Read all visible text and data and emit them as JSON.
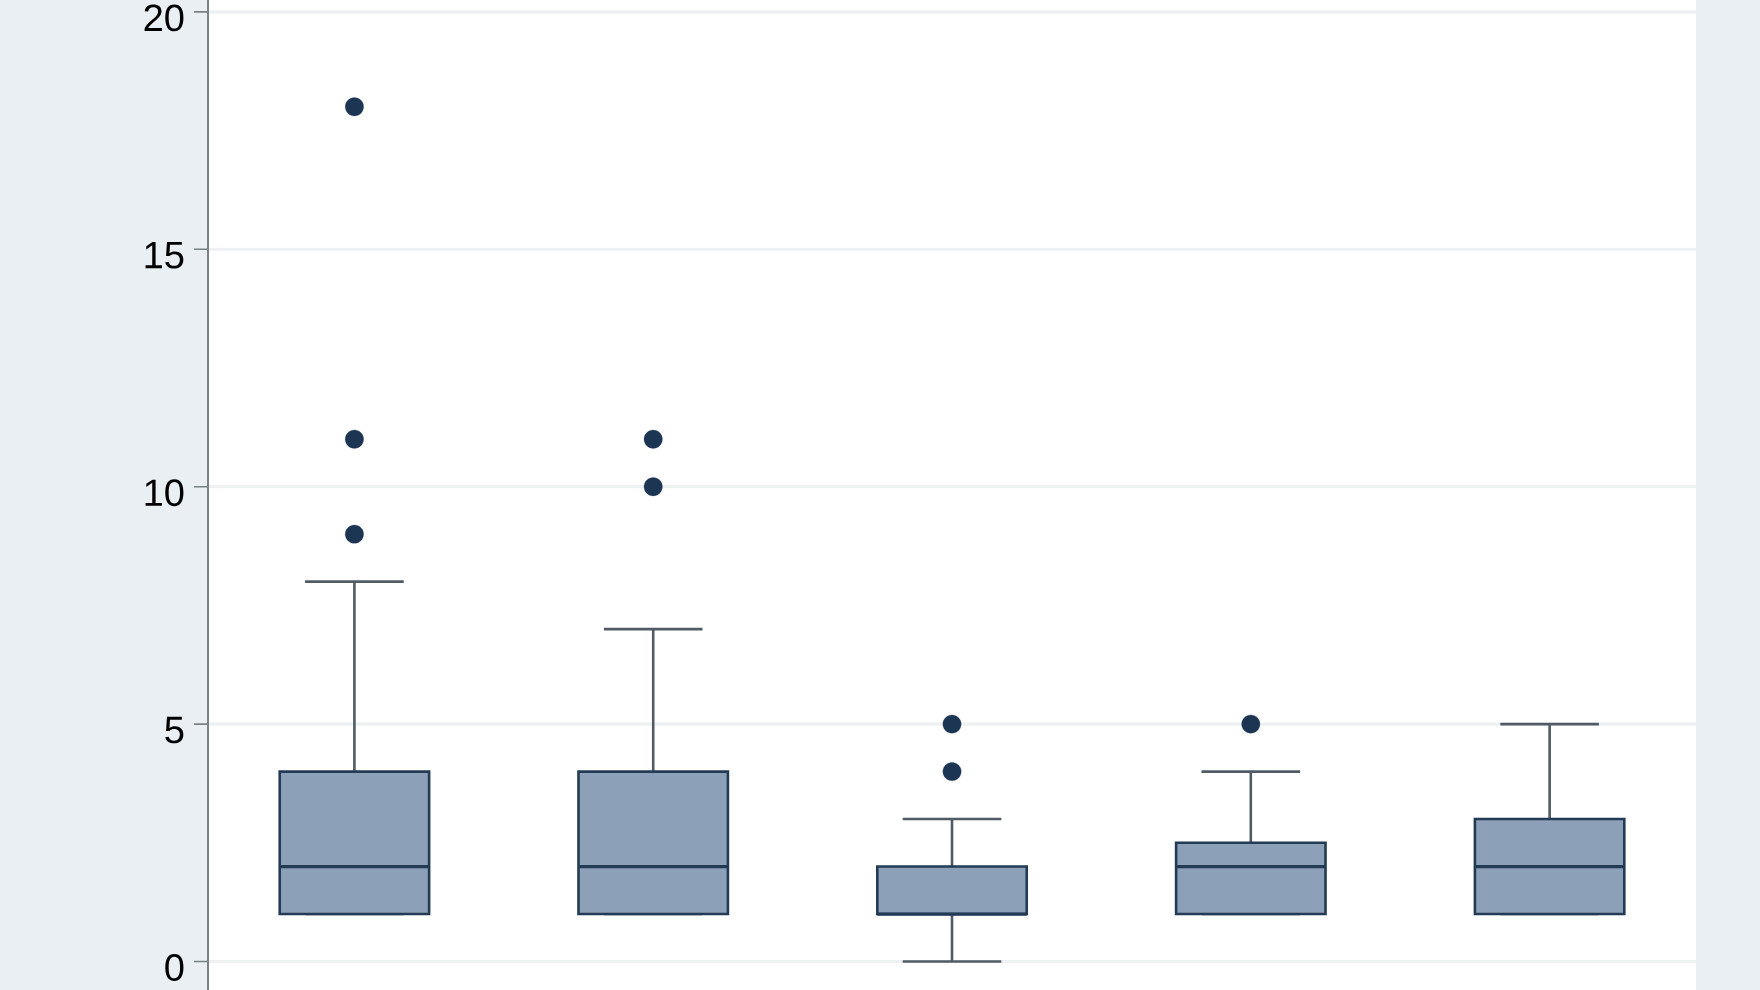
{
  "chart_data": {
    "type": "box",
    "categories": [
      null,
      null,
      null,
      null,
      null
    ],
    "boxes": [
      {
        "low": 1,
        "q1": 1,
        "median": 2,
        "q3": 4,
        "high": 8,
        "outliers": [
          9,
          11,
          18
        ]
      },
      {
        "low": 1,
        "q1": 1,
        "median": 2,
        "q3": 4,
        "high": 7,
        "outliers": [
          10,
          11
        ]
      },
      {
        "low": 0,
        "q1": 1,
        "median": 1,
        "q3": 2,
        "high": 3,
        "outliers": [
          4,
          5
        ]
      },
      {
        "low": 1,
        "q1": 1,
        "median": 2,
        "q3": 2.5,
        "high": 4,
        "outliers": [
          5
        ]
      },
      {
        "low": 1,
        "q1": 1,
        "median": 2,
        "q3": 3,
        "high": 5
      }
    ],
    "color": "#8ca1b8",
    "ylim": [
      -0.6,
      20.25
    ],
    "yticks": [
      0,
      5,
      10,
      15,
      20
    ],
    "grid": "y",
    "tick_labels": "y"
  }
}
